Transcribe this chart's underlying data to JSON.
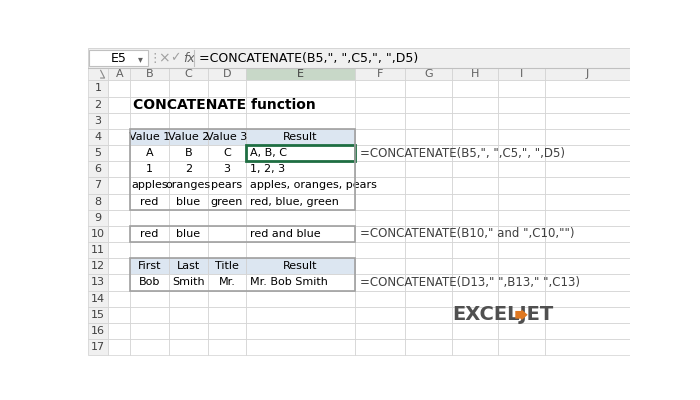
{
  "title": "CONCATENATE function",
  "formula_bar_cell": "E5",
  "formula_bar_formula": "=CONCATENATE(B5,\", \",C5,\", \",D5)",
  "col_letters": [
    "A",
    "B",
    "C",
    "D",
    "E",
    "F",
    "G",
    "H",
    "I",
    "J"
  ],
  "table1_header": [
    "Value 1",
    "Value 2",
    "Value 3",
    "Result"
  ],
  "table1_rows": [
    [
      "A",
      "B",
      "C",
      "A, B, C"
    ],
    [
      "1",
      "2",
      "3",
      "1, 2, 3"
    ],
    [
      "apples",
      "oranges",
      "pears",
      "apples, oranges, pears"
    ],
    [
      "red",
      "blue",
      "green",
      "red, blue, green"
    ]
  ],
  "table1_formula": "=CONCATENATE(B5,\", \",C5,\", \",D5)",
  "row10_data": [
    "red",
    "blue",
    "",
    "red and blue"
  ],
  "row10_formula": "=CONCATENATE(B10,\" and \",C10,\"\")",
  "table2_header": [
    "First",
    "Last",
    "Title",
    "Result"
  ],
  "table2_rows": [
    [
      "Bob",
      "Smith",
      "Mr.",
      "Mr. Bob Smith"
    ]
  ],
  "table2_formula": "=CONCATENATE(D13,\" \",B13,\" \",C13)",
  "bg_color": "#ffffff",
  "header_bg": "#dce6f1",
  "grid_color": "#d0d0d0",
  "border_color": "#a0a0a0",
  "selected_cell_color": "#1e6e42",
  "selected_col_bg": "#c8d8c8",
  "formula_bar_bg": "#f0f0f0",
  "col_header_bg": "#f0f0f0",
  "exceljet_dark": "#404040",
  "exceljet_orange": "#e07820"
}
